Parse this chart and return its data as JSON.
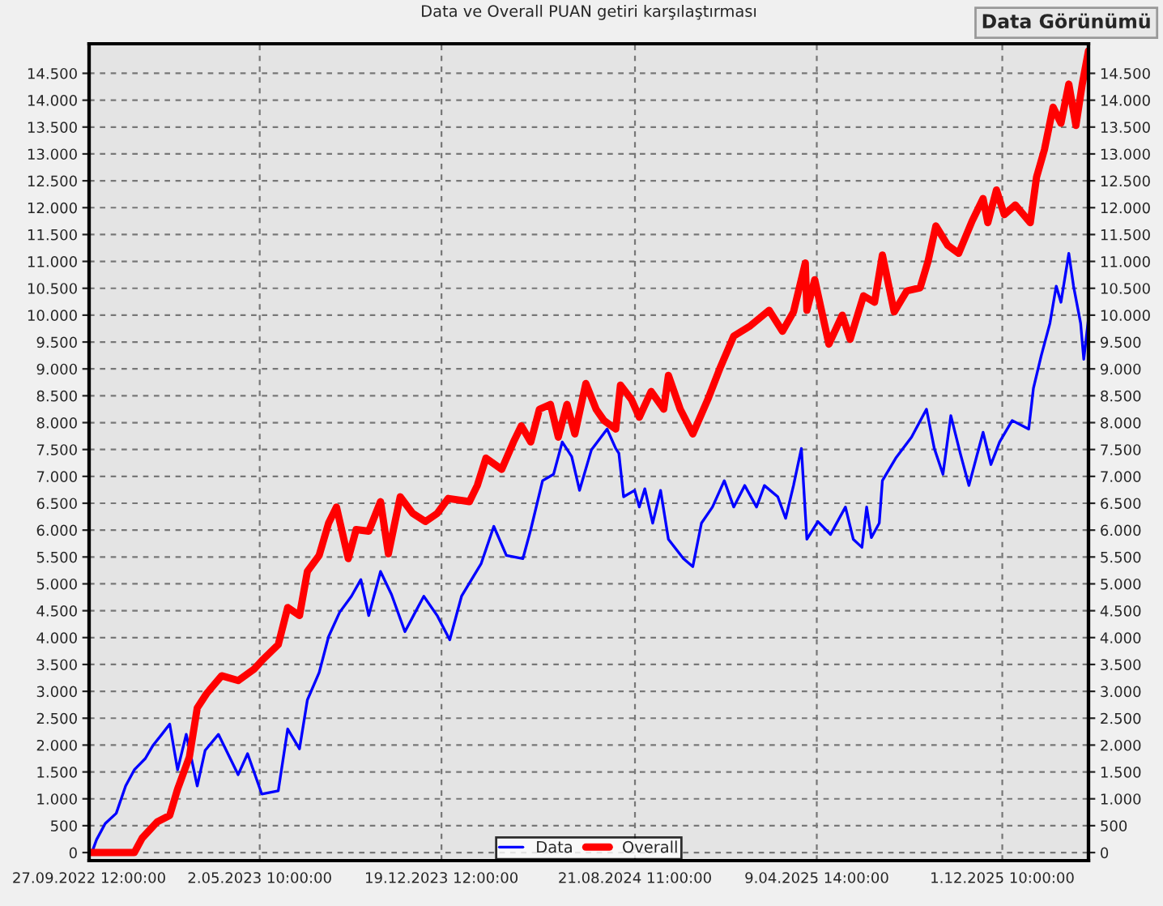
{
  "chart_data": {
    "type": "line",
    "title": "Data ve Overall PUAN getiri karşılaştırması",
    "annotations": [
      "Data Görünümü"
    ],
    "xlim": [
      "2022-09-27T12:00",
      "2026-03-21"
    ],
    "xticks": [
      {
        "value": "2022-09-27T12:00",
        "label": "27.09.2022 12:00:00"
      },
      {
        "value": "2023-05-02T10:00",
        "label": "2.05.2023 10:00:00"
      },
      {
        "value": "2023-12-19T12:00",
        "label": "19.12.2023 12:00:00"
      },
      {
        "value": "2024-08-21T11:00",
        "label": "21.08.2024 11:00:00"
      },
      {
        "value": "2025-04-09T14:00",
        "label": "9.04.2025 14:00:00"
      },
      {
        "value": "2025-12-01T10:00",
        "label": "1.12.2025 10:00:00"
      }
    ],
    "ylim": [
      -150,
      15050
    ],
    "yticks": [
      {
        "value": 0,
        "label": "0"
      },
      {
        "value": 500,
        "label": "500"
      },
      {
        "value": 1000,
        "label": "1.000"
      },
      {
        "value": 1500,
        "label": "1.500"
      },
      {
        "value": 2000,
        "label": "2.000"
      },
      {
        "value": 2500,
        "label": "2.500"
      },
      {
        "value": 3000,
        "label": "3.000"
      },
      {
        "value": 3500,
        "label": "3.500"
      },
      {
        "value": 4000,
        "label": "4.000"
      },
      {
        "value": 4500,
        "label": "4.500"
      },
      {
        "value": 5000,
        "label": "5.000"
      },
      {
        "value": 5500,
        "label": "5.500"
      },
      {
        "value": 6000,
        "label": "6.000"
      },
      {
        "value": 6500,
        "label": "6.500"
      },
      {
        "value": 7000,
        "label": "7.000"
      },
      {
        "value": 7500,
        "label": "7.500"
      },
      {
        "value": 8000,
        "label": "8.000"
      },
      {
        "value": 8500,
        "label": "8.500"
      },
      {
        "value": 9000,
        "label": "9.000"
      },
      {
        "value": 9500,
        "label": "9.500"
      },
      {
        "value": 10000,
        "label": "10.000"
      },
      {
        "value": 10500,
        "label": "10.500"
      },
      {
        "value": 11000,
        "label": "11.000"
      },
      {
        "value": 11500,
        "label": "11.500"
      },
      {
        "value": 12000,
        "label": "12.000"
      },
      {
        "value": 12500,
        "label": "12.500"
      },
      {
        "value": 13000,
        "label": "13.000"
      },
      {
        "value": 13500,
        "label": "13.500"
      },
      {
        "value": 14000,
        "label": "14.000"
      },
      {
        "value": 14500,
        "label": "14.500"
      }
    ],
    "y2lim": [
      -150,
      15050
    ],
    "y2ticks": [
      {
        "value": 0,
        "label": "0"
      },
      {
        "value": 500,
        "label": "500"
      },
      {
        "value": 1000,
        "label": "1.000"
      },
      {
        "value": 1500,
        "label": "1.500"
      },
      {
        "value": 2000,
        "label": "2.000"
      },
      {
        "value": 2500,
        "label": "2.500"
      },
      {
        "value": 3000,
        "label": "3.000"
      },
      {
        "value": 3500,
        "label": "3.500"
      },
      {
        "value": 4000,
        "label": "4.000"
      },
      {
        "value": 4500,
        "label": "4.500"
      },
      {
        "value": 5000,
        "label": "5.000"
      },
      {
        "value": 5500,
        "label": "5.500"
      },
      {
        "value": 6000,
        "label": "6.000"
      },
      {
        "value": 6500,
        "label": "6.500"
      },
      {
        "value": 7000,
        "label": "7.000"
      },
      {
        "value": 7500,
        "label": "7.500"
      },
      {
        "value": 8000,
        "label": "8.000"
      },
      {
        "value": 8500,
        "label": "8.500"
      },
      {
        "value": 9000,
        "label": "9.000"
      },
      {
        "value": 9500,
        "label": "9.500"
      },
      {
        "value": 10000,
        "label": "10.000"
      },
      {
        "value": 10500,
        "label": "10.500"
      },
      {
        "value": 11000,
        "label": "11.000"
      },
      {
        "value": 11500,
        "label": "11.500"
      },
      {
        "value": 12000,
        "label": "12.000"
      },
      {
        "value": 12500,
        "label": "12.500"
      },
      {
        "value": 13000,
        "label": "13.000"
      },
      {
        "value": 13500,
        "label": "13.500"
      },
      {
        "value": 14000,
        "label": "14.000"
      },
      {
        "value": 14500,
        "label": "14.500"
      }
    ],
    "grid": true,
    "legend": "bottom",
    "line_style": "solid",
    "marker": "none",
    "series": [
      {
        "name": "Data",
        "color": "#0000ff",
        "x": [
          "2022-10-01",
          "2022-10-07",
          "2022-10-18",
          "2022-11-01",
          "2022-11-13",
          "2022-11-24",
          "2022-12-08",
          "2022-12-18",
          "2022-12-29",
          "2023-01-08",
          "2023-01-18",
          "2023-01-29",
          "2023-02-12",
          "2023-02-22",
          "2023-03-11",
          "2023-04-05",
          "2023-04-17",
          "2023-05-05",
          "2023-05-26",
          "2023-06-07",
          "2023-06-22",
          "2023-07-02",
          "2023-07-17",
          "2023-07-29",
          "2023-08-12",
          "2023-08-27",
          "2023-09-08",
          "2023-09-18",
          "2023-10-03",
          "2023-10-17",
          "2023-11-03",
          "2023-11-27",
          "2023-12-14",
          "2023-12-30",
          "2024-01-14",
          "2024-02-08",
          "2024-02-24",
          "2024-03-11",
          "2024-04-01",
          "2024-04-11",
          "2024-04-26",
          "2024-05-10",
          "2024-05-21",
          "2024-06-02",
          "2024-06-12",
          "2024-06-27",
          "2024-07-17",
          "2024-07-28",
          "2024-08-01",
          "2024-08-07",
          "2024-08-21",
          "2024-08-27",
          "2024-09-03",
          "2024-09-13",
          "2024-09-23",
          "2024-10-03",
          "2024-10-22",
          "2024-11-03",
          "2024-11-14",
          "2024-11-28",
          "2024-12-13",
          "2024-12-25",
          "2025-01-08",
          "2025-01-23",
          "2025-02-02",
          "2025-02-19",
          "2025-03-01",
          "2025-03-11",
          "2025-03-21",
          "2025-03-28",
          "2025-04-11",
          "2025-04-27",
          "2025-05-16",
          "2025-05-26",
          "2025-06-06",
          "2025-06-12",
          "2025-06-18",
          "2025-06-28",
          "2025-07-02",
          "2025-07-19",
          "2025-08-08",
          "2025-08-27",
          "2025-09-06",
          "2025-09-17",
          "2025-09-27",
          "2025-10-09",
          "2025-10-20",
          "2025-11-07",
          "2025-11-17",
          "2025-11-28",
          "2025-12-14",
          "2026-01-04",
          "2026-01-10",
          "2026-01-20",
          "2026-01-31",
          "2026-02-08",
          "2026-02-14",
          "2026-02-24",
          "2026-03-02",
          "2026-03-11",
          "2026-03-15",
          "2026-03-21"
        ],
        "values": [
          0,
          240,
          540,
          730,
          1240,
          1540,
          1750,
          2000,
          2200,
          2390,
          1540,
          2200,
          1240,
          1900,
          2200,
          1450,
          1840,
          1090,
          1150,
          2300,
          1930,
          2840,
          3350,
          4020,
          4470,
          4770,
          5080,
          4410,
          5230,
          4800,
          4110,
          4770,
          4410,
          3960,
          4770,
          5380,
          6070,
          5530,
          5470,
          6010,
          6920,
          7040,
          7640,
          7370,
          6740,
          7490,
          7880,
          7520,
          7430,
          6620,
          6740,
          6430,
          6770,
          6130,
          6740,
          5830,
          5470,
          5320,
          6130,
          6430,
          6920,
          6430,
          6830,
          6430,
          6830,
          6620,
          6220,
          6830,
          7520,
          5830,
          6160,
          5920,
          6430,
          5830,
          5680,
          6430,
          5860,
          6130,
          6920,
          7340,
          7730,
          8250,
          7520,
          7040,
          8130,
          7430,
          6830,
          7820,
          7220,
          7640,
          8040,
          7880,
          8640,
          9250,
          9850,
          10540,
          10240,
          11150,
          10540,
          9850,
          9180,
          9940
        ]
      },
      {
        "name": "Overall",
        "color": "#ff0000",
        "x": [
          "2022-09-29",
          "2022-11-13",
          "2022-11-24",
          "2022-12-04",
          "2022-12-23",
          "2023-01-08",
          "2023-01-18",
          "2023-02-02",
          "2023-02-12",
          "2023-02-24",
          "2023-03-15",
          "2023-04-05",
          "2023-04-25",
          "2023-05-07",
          "2023-05-26",
          "2023-06-07",
          "2023-06-22",
          "2023-07-02",
          "2023-07-17",
          "2023-07-29",
          "2023-08-08",
          "2023-08-23",
          "2023-09-02",
          "2023-09-18",
          "2023-10-03",
          "2023-10-13",
          "2023-10-28",
          "2023-11-13",
          "2023-11-29",
          "2023-12-14",
          "2023-12-28",
          "2024-01-24",
          "2024-02-03",
          "2024-02-14",
          "2024-03-05",
          "2024-03-20",
          "2024-03-30",
          "2024-04-11",
          "2024-04-22",
          "2024-05-06",
          "2024-05-16",
          "2024-05-27",
          "2024-06-06",
          "2024-06-20",
          "2024-07-03",
          "2024-07-13",
          "2024-07-28",
          "2024-08-03",
          "2024-08-17",
          "2024-08-27",
          "2024-09-11",
          "2024-09-27",
          "2024-10-03",
          "2024-10-18",
          "2024-11-03",
          "2024-11-22",
          "2024-12-08",
          "2024-12-25",
          "2025-01-14",
          "2025-02-08",
          "2025-02-25",
          "2025-03-11",
          "2025-03-26",
          "2025-03-28",
          "2025-04-07",
          "2025-04-25",
          "2025-05-12",
          "2025-05-22",
          "2025-06-08",
          "2025-06-22",
          "2025-07-02",
          "2025-07-17",
          "2025-08-02",
          "2025-08-19",
          "2025-08-29",
          "2025-09-08",
          "2025-09-23",
          "2025-10-07",
          "2025-10-24",
          "2025-11-07",
          "2025-11-13",
          "2025-11-24",
          "2025-12-04",
          "2025-12-18",
          "2026-01-06",
          "2026-01-14",
          "2026-01-24",
          "2026-02-04",
          "2026-02-14",
          "2026-02-24",
          "2026-03-05",
          "2026-03-13",
          "2026-03-21"
        ],
        "values": [
          0,
          0,
          0,
          270,
          570,
          690,
          1180,
          1780,
          2690,
          2960,
          3290,
          3200,
          3410,
          3600,
          3870,
          4560,
          4410,
          5230,
          5530,
          6130,
          6430,
          5470,
          6010,
          5980,
          6530,
          5560,
          6620,
          6310,
          6160,
          6310,
          6590,
          6530,
          6830,
          7340,
          7130,
          7640,
          7940,
          7640,
          8250,
          8340,
          7730,
          8340,
          7790,
          8730,
          8250,
          8040,
          7880,
          8700,
          8430,
          8100,
          8580,
          8250,
          8880,
          8250,
          7790,
          8430,
          9030,
          9610,
          9790,
          10090,
          9700,
          10060,
          10970,
          10090,
          10660,
          9460,
          10000,
          9550,
          10360,
          10240,
          11120,
          10060,
          10450,
          10510,
          11000,
          11660,
          11300,
          11150,
          11750,
          12170,
          11720,
          12330,
          11870,
          12050,
          11720,
          12570,
          13080,
          13870,
          13570,
          14300,
          13530,
          14290,
          14920
        ]
      }
    ]
  }
}
